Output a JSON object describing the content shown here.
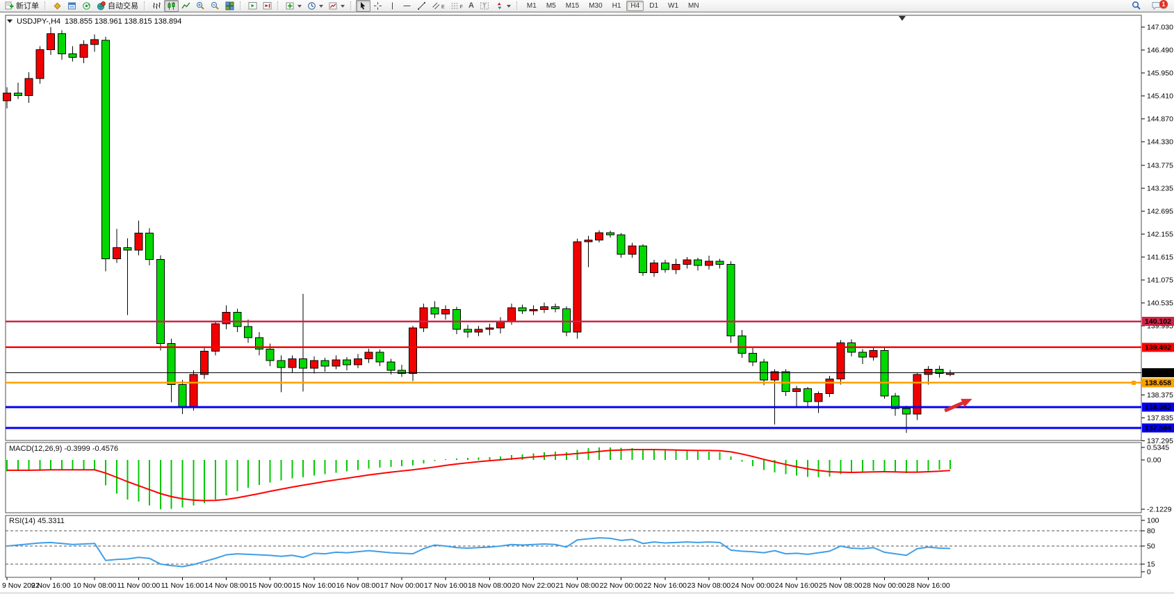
{
  "toolbar": {
    "new_order_label": "新订单",
    "autotrading_label": "自动交易",
    "timeframes": [
      "M1",
      "M5",
      "M15",
      "M30",
      "H1",
      "H4",
      "D1",
      "W1",
      "MN"
    ],
    "active_timeframe": "H4",
    "notification_badge": "1",
    "text_tool_glyph": "A",
    "label_tool_glyph": "T",
    "channel_tool_glyph": "E",
    "fibo_tool_glyph": "F"
  },
  "chart": {
    "symbol_period": "USDJPY-,H4",
    "ohlc_display": "138.855 138.961 138.815 138.894",
    "open": "138.855",
    "high": "138.961",
    "low": "138.815",
    "close": "138.894"
  },
  "chart_data": {
    "type": "candlestick",
    "symbol": "USDJPY-",
    "timeframe": "H4",
    "y_range": [
      137.3,
      147.31
    ],
    "price_ticks": [
      147.03,
      146.49,
      145.95,
      145.41,
      144.87,
      144.33,
      143.775,
      143.235,
      142.695,
      142.155,
      141.615,
      141.075,
      140.535,
      139.995,
      138.375,
      137.835,
      137.295
    ],
    "time_label_step": 4,
    "time_labels": [
      "9 Nov 2022",
      "9 Nov 16:00",
      "10 Nov 08:00",
      "11 Nov 00:00",
      "11 Nov 16:00",
      "14 Nov 08:00",
      "15 Nov 00:00",
      "15 Nov 16:00",
      "16 Nov 08:00",
      "17 Nov 00:00",
      "17 Nov 16:00",
      "18 Nov 08:00",
      "20 Nov 22:00",
      "21 Nov 08:00",
      "22 Nov 00:00",
      "22 Nov 16:00",
      "23 Nov 08:00",
      "24 Nov 00:00",
      "24 Nov 16:00",
      "25 Nov 08:00",
      "28 Nov 00:00",
      "28 Nov 16:00"
    ],
    "candles": [
      [
        145.3,
        145.62,
        145.12,
        145.48
      ],
      [
        145.48,
        145.72,
        145.34,
        145.42
      ],
      [
        145.42,
        145.97,
        145.25,
        145.82
      ],
      [
        145.82,
        146.58,
        145.7,
        146.5
      ],
      [
        146.5,
        147.03,
        146.38,
        146.88
      ],
      [
        146.88,
        146.96,
        146.26,
        146.4
      ],
      [
        146.4,
        146.58,
        146.22,
        146.32
      ],
      [
        146.32,
        146.72,
        146.18,
        146.62
      ],
      [
        146.62,
        146.86,
        146.45,
        146.74
      ],
      [
        146.72,
        146.8,
        141.28,
        141.58
      ],
      [
        141.58,
        142.28,
        141.48,
        141.84
      ],
      [
        141.84,
        142.06,
        140.25,
        141.78
      ],
      [
        141.78,
        142.48,
        141.66,
        142.18
      ],
      [
        142.18,
        142.3,
        141.42,
        141.56
      ],
      [
        141.56,
        141.66,
        139.42,
        139.58
      ],
      [
        139.58,
        139.7,
        138.2,
        138.62
      ],
      [
        138.62,
        138.72,
        137.92,
        138.08
      ],
      [
        138.08,
        138.95,
        138.0,
        138.85
      ],
      [
        138.85,
        139.5,
        138.75,
        139.4
      ],
      [
        139.4,
        140.12,
        139.3,
        140.05
      ],
      [
        140.05,
        140.48,
        139.92,
        140.32
      ],
      [
        140.32,
        140.4,
        139.85,
        139.98
      ],
      [
        139.98,
        140.15,
        139.6,
        139.72
      ],
      [
        139.72,
        139.85,
        139.3,
        139.45
      ],
      [
        139.45,
        139.58,
        139.05,
        139.18
      ],
      [
        139.18,
        139.3,
        138.44,
        139.02
      ],
      [
        139.02,
        139.3,
        138.9,
        139.22
      ],
      [
        139.22,
        140.75,
        138.45,
        139.0
      ],
      [
        139.0,
        139.28,
        138.88,
        139.18
      ],
      [
        139.18,
        139.25,
        138.92,
        139.05
      ],
      [
        139.05,
        139.3,
        138.98,
        139.2
      ],
      [
        139.2,
        139.26,
        138.95,
        139.08
      ],
      [
        139.08,
        139.34,
        139.0,
        139.22
      ],
      [
        139.22,
        139.46,
        139.12,
        139.38
      ],
      [
        139.38,
        139.44,
        139.05,
        139.15
      ],
      [
        139.15,
        139.22,
        138.85,
        138.95
      ],
      [
        138.95,
        139.08,
        138.8,
        138.88
      ],
      [
        138.88,
        140.0,
        138.7,
        139.95
      ],
      [
        139.95,
        140.52,
        139.85,
        140.42
      ],
      [
        140.42,
        140.58,
        140.18,
        140.28
      ],
      [
        140.28,
        140.48,
        140.15,
        140.38
      ],
      [
        140.38,
        140.45,
        139.8,
        139.92
      ],
      [
        139.92,
        140.02,
        139.72,
        139.85
      ],
      [
        139.85,
        140.0,
        139.75,
        139.92
      ],
      [
        139.92,
        140.05,
        139.78,
        139.95
      ],
      [
        139.95,
        140.2,
        139.82,
        140.1
      ],
      [
        140.1,
        140.52,
        140.02,
        140.42
      ],
      [
        140.42,
        140.5,
        140.28,
        140.35
      ],
      [
        140.35,
        140.48,
        140.25,
        140.38
      ],
      [
        140.38,
        140.55,
        140.3,
        140.45
      ],
      [
        140.45,
        140.52,
        140.32,
        140.4
      ],
      [
        140.4,
        140.46,
        139.75,
        139.85
      ],
      [
        139.85,
        142.05,
        139.7,
        141.98
      ],
      [
        141.98,
        142.12,
        141.38,
        142.02
      ],
      [
        142.02,
        142.25,
        141.96,
        142.19
      ],
      [
        142.19,
        142.24,
        142.08,
        142.14
      ],
      [
        142.14,
        142.18,
        141.6,
        141.68
      ],
      [
        141.68,
        141.95,
        141.6,
        141.88
      ],
      [
        141.88,
        141.92,
        141.18,
        141.25
      ],
      [
        141.25,
        141.55,
        141.15,
        141.48
      ],
      [
        141.48,
        141.55,
        141.25,
        141.32
      ],
      [
        141.32,
        141.58,
        141.22,
        141.45
      ],
      [
        141.45,
        141.62,
        141.35,
        141.55
      ],
      [
        141.55,
        141.6,
        141.3,
        141.42
      ],
      [
        141.42,
        141.65,
        141.32,
        141.52
      ],
      [
        141.52,
        141.58,
        141.35,
        141.45
      ],
      [
        141.45,
        141.52,
        139.6,
        139.76
      ],
      [
        139.76,
        139.9,
        139.25,
        139.35
      ],
      [
        139.35,
        139.48,
        139.05,
        139.15
      ],
      [
        139.15,
        139.22,
        138.6,
        138.72
      ],
      [
        138.72,
        138.98,
        137.68,
        138.92
      ],
      [
        138.92,
        138.98,
        138.35,
        138.45
      ],
      [
        138.45,
        138.58,
        138.1,
        138.52
      ],
      [
        138.52,
        138.56,
        138.08,
        138.22
      ],
      [
        138.22,
        138.45,
        137.95,
        138.4
      ],
      [
        138.4,
        138.82,
        138.32,
        138.75
      ],
      [
        138.75,
        139.66,
        138.62,
        139.6
      ],
      [
        139.6,
        139.68,
        139.28,
        139.38
      ],
      [
        139.38,
        139.45,
        139.1,
        139.26
      ],
      [
        139.26,
        139.5,
        139.18,
        139.42
      ],
      [
        139.42,
        139.48,
        138.28,
        138.35
      ],
      [
        138.35,
        138.42,
        137.88,
        138.05
      ],
      [
        138.05,
        138.12,
        137.48,
        137.92
      ],
      [
        137.92,
        138.9,
        137.78,
        138.85
      ],
      [
        138.85,
        139.05,
        138.62,
        138.98
      ],
      [
        138.98,
        139.06,
        138.78,
        138.88
      ],
      [
        138.855,
        138.961,
        138.815,
        138.894
      ]
    ],
    "levels": [
      {
        "value": 140.102,
        "label": "140.102",
        "color": "#cf2348",
        "width": 2.5
      },
      {
        "value": 139.492,
        "label": "139.492",
        "color": "#fe0000",
        "width": 2.5
      },
      {
        "value": 138.658,
        "label": "138.658",
        "color": "#ffa000",
        "width": 2.5,
        "handle": true
      },
      {
        "value": 138.082,
        "label": "138.082",
        "color": "#0400f0",
        "width": 3
      },
      {
        "value": 137.594,
        "label": "137.594",
        "color": "#0400f0",
        "width": 3
      }
    ],
    "current_price": {
      "value": 138.894,
      "label": "138.894",
      "color": "#000000"
    },
    "annotation_arrow": {
      "color": "#e02a30",
      "x1_index": 85.5,
      "y1_price": 138.0,
      "x2_index": 88.0,
      "y2_price": 138.28
    },
    "indicators": {
      "macd": {
        "display": "MACD(12,26,9) -0.3999 -0.4576",
        "params": "12,26,9",
        "value": -0.3999,
        "signal_value": -0.4576,
        "ylim": [
          -2.27,
          0.74
        ],
        "axis_ticks": [
          0.5345,
          0,
          -2.1229
        ],
        "axis_tick_labels": [
          "0.5345",
          "0.00",
          "-2.1229"
        ],
        "colors": {
          "histogram": "#00c800",
          "signal": "#ff0000"
        },
        "histogram": [
          -0.5,
          -0.48,
          -0.45,
          -0.42,
          -0.4,
          -0.42,
          -0.45,
          -0.44,
          -0.42,
          -1.1,
          -1.45,
          -1.7,
          -1.8,
          -1.95,
          -2.12,
          -2.1,
          -2.05,
          -1.95,
          -1.85,
          -1.7,
          -1.52,
          -1.35,
          -1.2,
          -1.08,
          -0.97,
          -0.88,
          -0.8,
          -0.75,
          -0.68,
          -0.62,
          -0.56,
          -0.5,
          -0.44,
          -0.38,
          -0.33,
          -0.3,
          -0.28,
          -0.24,
          -0.15,
          -0.05,
          0.02,
          0.06,
          0.08,
          0.1,
          0.12,
          0.15,
          0.2,
          0.24,
          0.28,
          0.32,
          0.35,
          0.33,
          0.42,
          0.5,
          0.53,
          0.5345,
          0.52,
          0.5,
          0.45,
          0.42,
          0.4,
          0.39,
          0.38,
          0.37,
          0.36,
          0.34,
          0.15,
          -0.08,
          -0.28,
          -0.44,
          -0.54,
          -0.62,
          -0.68,
          -0.73,
          -0.75,
          -0.72,
          -0.62,
          -0.55,
          -0.5,
          -0.47,
          -0.5,
          -0.54,
          -0.57,
          -0.52,
          -0.46,
          -0.42,
          -0.3999
        ],
        "signal": [
          -0.45,
          -0.45,
          -0.45,
          -0.44,
          -0.43,
          -0.43,
          -0.43,
          -0.43,
          -0.43,
          -0.57,
          -0.75,
          -0.94,
          -1.11,
          -1.28,
          -1.45,
          -1.58,
          -1.67,
          -1.73,
          -1.75,
          -1.74,
          -1.7,
          -1.63,
          -1.54,
          -1.45,
          -1.35,
          -1.26,
          -1.17,
          -1.09,
          -1.01,
          -0.93,
          -0.86,
          -0.79,
          -0.72,
          -0.65,
          -0.59,
          -0.53,
          -0.48,
          -0.43,
          -0.37,
          -0.31,
          -0.24,
          -0.18,
          -0.13,
          -0.08,
          -0.04,
          0.0,
          0.04,
          0.08,
          0.12,
          0.16,
          0.2,
          0.23,
          0.27,
          0.31,
          0.36,
          0.4,
          0.42,
          0.44,
          0.44,
          0.44,
          0.43,
          0.42,
          0.41,
          0.4,
          0.4,
          0.39,
          0.34,
          0.25,
          0.14,
          0.02,
          -0.09,
          -0.2,
          -0.3,
          -0.39,
          -0.46,
          -0.51,
          -0.53,
          -0.54,
          -0.53,
          -0.52,
          -0.51,
          -0.52,
          -0.53,
          -0.53,
          -0.51,
          -0.49,
          -0.4576
        ]
      },
      "rsi": {
        "display": "RSI(14) 45.3311",
        "period": 14,
        "value": 45.3311,
        "ylim": [
          0,
          100
        ],
        "axis_ticks": [
          100,
          80,
          50,
          15,
          0
        ],
        "axis_tick_labels": [
          "100",
          "80",
          "50",
          "15",
          "0"
        ],
        "level_lines": [
          80,
          50,
          15
        ],
        "color": "#3e9ee8",
        "values": [
          50,
          52,
          54,
          56,
          57,
          55,
          53,
          54,
          55,
          22,
          24,
          25,
          28,
          26,
          15,
          12,
          10,
          14,
          20,
          26,
          33,
          35,
          34,
          33,
          32,
          30,
          32,
          28,
          36,
          35,
          38,
          37,
          39,
          41,
          39,
          37,
          36,
          35,
          45,
          52,
          50,
          47,
          46,
          47,
          48,
          50,
          53,
          52,
          53,
          54,
          53,
          48,
          62,
          64,
          66,
          65,
          61,
          63,
          55,
          58,
          56,
          57,
          58,
          57,
          58,
          57,
          42,
          40,
          39,
          37,
          41,
          35,
          36,
          34,
          37,
          40,
          50,
          46,
          45,
          47,
          38,
          35,
          32,
          45,
          48,
          46,
          45.33
        ]
      }
    },
    "colors": {
      "bull": "#f20000",
      "bear": "#00d800",
      "outline": "#000000",
      "background": "#ffffff"
    }
  }
}
